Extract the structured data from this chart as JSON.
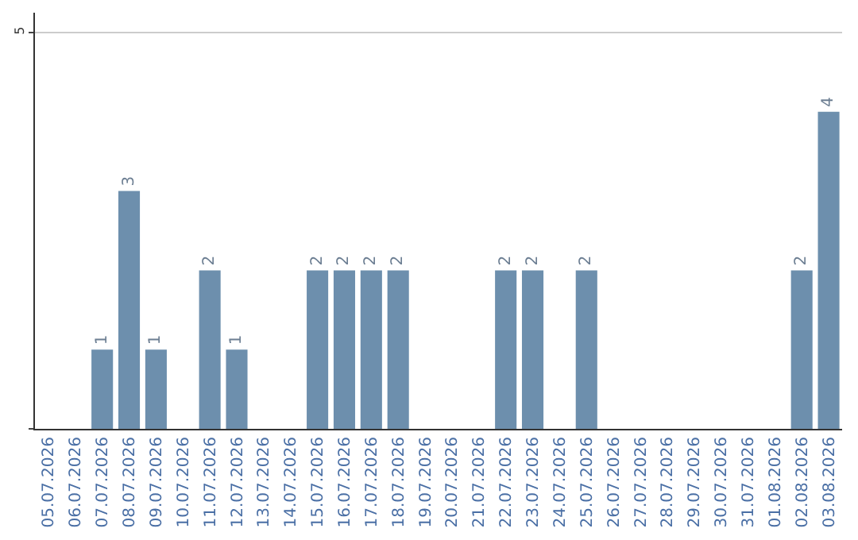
{
  "chart_data": {
    "type": "bar",
    "categories": [
      "05.07.2026",
      "06.07.2026",
      "07.07.2026",
      "08.07.2026",
      "09.07.2026",
      "10.07.2026",
      "11.07.2026",
      "12.07.2026",
      "13.07.2026",
      "14.07.2026",
      "15.07.2026",
      "16.07.2026",
      "17.07.2026",
      "18.07.2026",
      "19.07.2026",
      "20.07.2026",
      "21.07.2026",
      "22.07.2026",
      "23.07.2026",
      "24.07.2026",
      "25.07.2026",
      "26.07.2026",
      "27.07.2026",
      "28.07.2026",
      "29.07.2026",
      "30.07.2026",
      "31.07.2026",
      "01.08.2026",
      "02.08.2026",
      "03.08.2026"
    ],
    "values": [
      0,
      0,
      1,
      3,
      1,
      0,
      2,
      1,
      0,
      0,
      2,
      2,
      2,
      2,
      0,
      0,
      0,
      2,
      2,
      0,
      2,
      0,
      0,
      0,
      0,
      0,
      0,
      0,
      2,
      4
    ],
    "value_labels": [
      null,
      null,
      "1",
      "3",
      "1",
      null,
      "2",
      "1",
      null,
      null,
      "2",
      "2",
      "2",
      "2",
      null,
      null,
      null,
      "2",
      "2",
      null,
      "2",
      null,
      null,
      null,
      null,
      null,
      null,
      null,
      "2",
      "4"
    ],
    "color": "#6d8fad",
    "ylim": [
      0,
      5.25
    ],
    "yticks": [
      {
        "value": 0,
        "label": null
      },
      5
    ],
    "grid": "y",
    "legend": false
  }
}
